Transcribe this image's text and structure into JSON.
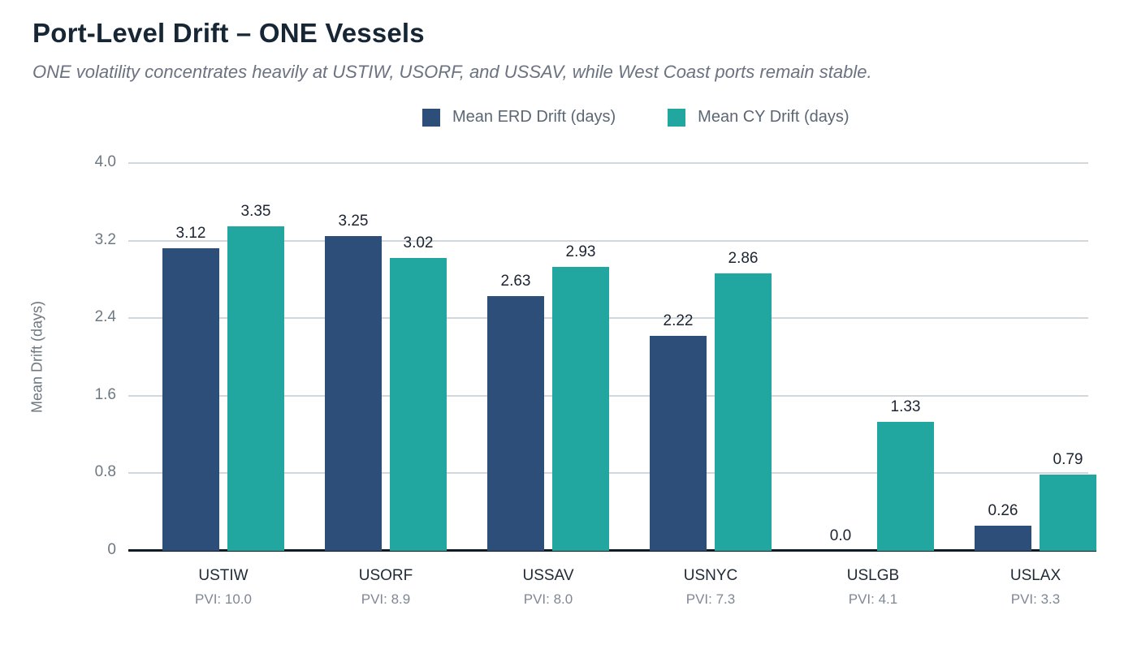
{
  "header": {
    "title": "Port-Level Drift – ONE Vessels",
    "subtitle": "ONE volatility concentrates heavily at USTIW, USORF, and USSAV, while West Coast ports remain stable."
  },
  "colors": {
    "erd_navy": "#2d4e78",
    "cy_teal": "#22a7a0",
    "title_text": "#172635",
    "subtitle_text": "#6b7280",
    "axis_text": "#6e7881",
    "gridline": "#d2d7db",
    "axis_line": "#0e1b28"
  },
  "chart_data": {
    "type": "bar",
    "title": "Port-Level Drift – ONE Vessels",
    "subtitle": "ONE volatility concentrates heavily at USTIW, USORF, and USSAV, while West Coast ports remain stable.",
    "categories": [
      "USTIW",
      "USORF",
      "USSAV",
      "USNYC",
      "USLGB",
      "USLAX"
    ],
    "category_sublabels": [
      "PVI: 10.0",
      "PVI: 8.9",
      "PVI: 8.0",
      "PVI: 7.3",
      "PVI: 4.1",
      "PVI: 3.3"
    ],
    "series": [
      {
        "name": "Mean ERD Drift (days)",
        "color": "#2d4e78",
        "values": [
          3.12,
          3.25,
          2.63,
          2.22,
          0.0,
          0.26
        ],
        "value_labels": [
          "3.12",
          "3.25",
          "2.63",
          "2.22",
          "0.0",
          "0.26"
        ]
      },
      {
        "name": "Mean CY Drift (days)",
        "color": "#22a7a0",
        "values": [
          3.35,
          3.02,
          2.93,
          2.86,
          1.33,
          0.79
        ],
        "value_labels": [
          "3.35",
          "3.02",
          "2.93",
          "2.86",
          "1.33",
          "0.79"
        ]
      }
    ],
    "xlabel": "",
    "ylabel": "Mean Drift (days)",
    "ylim": [
      0,
      4.0
    ],
    "yticks": [
      0,
      0.8,
      1.6,
      2.4,
      3.2,
      4.0
    ],
    "ytick_labels": [
      "0",
      "0.8",
      "1.6",
      "2.4",
      "3.2",
      "4.0"
    ],
    "grid": true,
    "legend_position": "top-center",
    "bar_value_labels_shown": true
  }
}
